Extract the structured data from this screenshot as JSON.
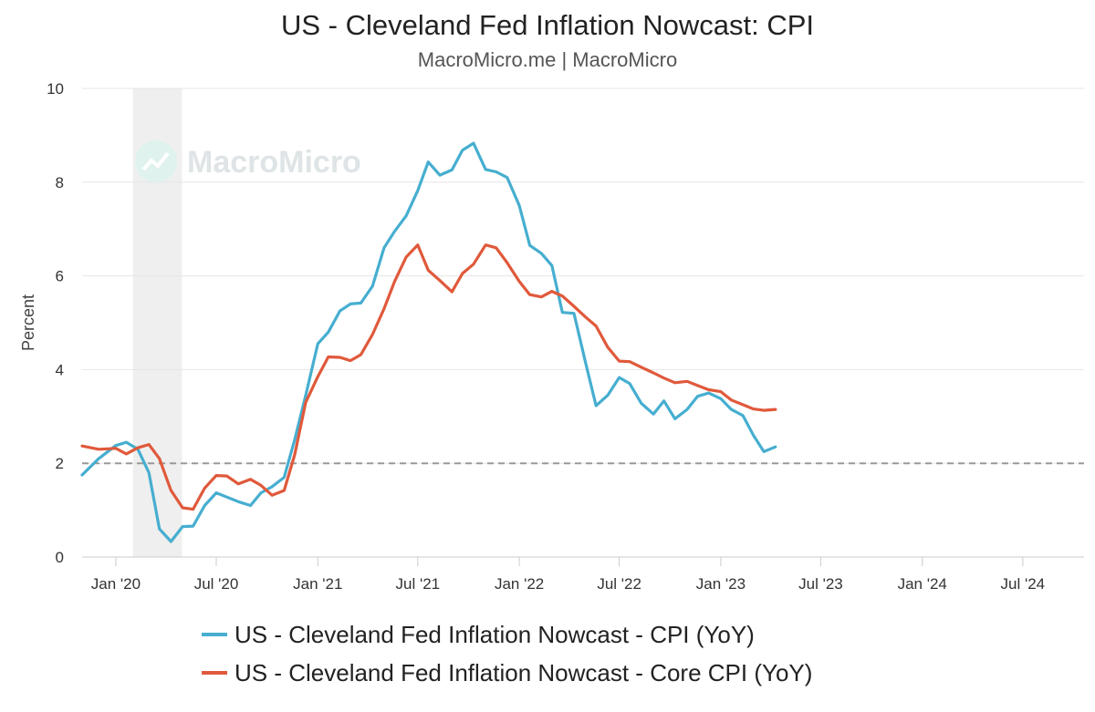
{
  "chart_data": {
    "type": "line",
    "title": "US - Cleveland Fed Inflation Nowcast: CPI",
    "subtitle": "MacroMicro.me | MacroMicro",
    "watermark": "MacroMicro",
    "ylabel": "Percent",
    "xlabel": "",
    "ylim": [
      0,
      10
    ],
    "yticks": [
      0,
      2,
      4,
      6,
      8,
      10
    ],
    "x_start": "2019-11",
    "x_end": "2024-10",
    "x_ticks": [
      {
        "date": "2020-01",
        "label": "Jan '20"
      },
      {
        "date": "2020-07",
        "label": "Jul '20"
      },
      {
        "date": "2021-01",
        "label": "Jan '21"
      },
      {
        "date": "2021-07",
        "label": "Jul '21"
      },
      {
        "date": "2022-01",
        "label": "Jan '22"
      },
      {
        "date": "2022-07",
        "label": "Jul '22"
      },
      {
        "date": "2023-01",
        "label": "Jan '23"
      },
      {
        "date": "2023-07",
        "label": "Jul '23"
      },
      {
        "date": "2024-01",
        "label": "Jan '24"
      },
      {
        "date": "2024-07",
        "label": "Jul '24"
      }
    ],
    "recession_shading": {
      "start": "2020-02",
      "end": "2020-04-30"
    },
    "reference_line": {
      "y": 2,
      "style": "dashed",
      "color": "#999999"
    },
    "grid": true,
    "legend_position": "bottom",
    "series": [
      {
        "name": "US - Cleveland Fed Inflation Nowcast - CPI (YoY)",
        "color": "#46aed0",
        "points": [
          [
            "2019-11-01",
            1.75
          ],
          [
            "2019-12-01",
            2.1
          ],
          [
            "2020-01-01",
            2.38
          ],
          [
            "2020-01-20",
            2.45
          ],
          [
            "2020-02-10",
            2.3
          ],
          [
            "2020-03-01",
            1.8
          ],
          [
            "2020-03-20",
            0.6
          ],
          [
            "2020-04-10",
            0.33
          ],
          [
            "2020-05-01",
            0.65
          ],
          [
            "2020-05-20",
            0.66
          ],
          [
            "2020-06-10",
            1.1
          ],
          [
            "2020-07-01",
            1.37
          ],
          [
            "2020-07-20",
            1.28
          ],
          [
            "2020-08-10",
            1.18
          ],
          [
            "2020-09-01",
            1.1
          ],
          [
            "2020-09-20",
            1.37
          ],
          [
            "2020-10-10",
            1.5
          ],
          [
            "2020-11-01",
            1.7
          ],
          [
            "2020-11-20",
            2.5
          ],
          [
            "2020-12-10",
            3.45
          ],
          [
            "2021-01-01",
            4.55
          ],
          [
            "2021-01-20",
            4.8
          ],
          [
            "2021-02-10",
            5.25
          ],
          [
            "2021-03-01",
            5.4
          ],
          [
            "2021-03-20",
            5.42
          ],
          [
            "2021-04-10",
            5.78
          ],
          [
            "2021-05-01",
            6.6
          ],
          [
            "2021-05-20",
            6.95
          ],
          [
            "2021-06-10",
            7.28
          ],
          [
            "2021-07-01",
            7.82
          ],
          [
            "2021-07-20",
            8.43
          ],
          [
            "2021-08-10",
            8.15
          ],
          [
            "2021-09-01",
            8.26
          ],
          [
            "2021-09-20",
            8.68
          ],
          [
            "2021-10-10",
            8.83
          ],
          [
            "2021-11-01",
            8.27
          ],
          [
            "2021-11-20",
            8.22
          ],
          [
            "2021-12-10",
            8.1
          ],
          [
            "2022-01-01",
            7.5
          ],
          [
            "2022-01-20",
            6.65
          ],
          [
            "2022-02-10",
            6.48
          ],
          [
            "2022-03-01",
            6.22
          ],
          [
            "2022-03-20",
            5.22
          ],
          [
            "2022-04-10",
            5.2
          ],
          [
            "2022-05-01",
            4.15
          ],
          [
            "2022-05-20",
            3.23
          ],
          [
            "2022-06-10",
            3.45
          ],
          [
            "2022-07-01",
            3.83
          ],
          [
            "2022-07-20",
            3.7
          ],
          [
            "2022-08-10",
            3.28
          ],
          [
            "2022-09-01",
            3.05
          ],
          [
            "2022-09-20",
            3.33
          ],
          [
            "2022-10-10",
            2.95
          ],
          [
            "2022-11-01",
            3.15
          ],
          [
            "2022-11-20",
            3.43
          ],
          [
            "2022-12-10",
            3.5
          ],
          [
            "2023-01-01",
            3.38
          ],
          [
            "2023-01-20",
            3.15
          ],
          [
            "2023-02-10",
            3.02
          ],
          [
            "2023-03-01",
            2.6
          ],
          [
            "2023-03-20",
            2.25
          ],
          [
            "2023-04-10",
            2.35
          ]
        ]
      },
      {
        "name": "US - Cleveland Fed Inflation Nowcast - Core CPI (YoY)",
        "color": "#e0593b",
        "points": [
          [
            "2019-11-01",
            2.37
          ],
          [
            "2019-12-01",
            2.3
          ],
          [
            "2020-01-01",
            2.32
          ],
          [
            "2020-01-20",
            2.2
          ],
          [
            "2020-02-10",
            2.33
          ],
          [
            "2020-03-01",
            2.4
          ],
          [
            "2020-03-20",
            2.1
          ],
          [
            "2020-04-10",
            1.42
          ],
          [
            "2020-05-01",
            1.05
          ],
          [
            "2020-05-20",
            1.02
          ],
          [
            "2020-06-10",
            1.47
          ],
          [
            "2020-07-01",
            1.74
          ],
          [
            "2020-07-20",
            1.73
          ],
          [
            "2020-08-10",
            1.56
          ],
          [
            "2020-09-01",
            1.66
          ],
          [
            "2020-09-20",
            1.53
          ],
          [
            "2020-10-10",
            1.32
          ],
          [
            "2020-11-01",
            1.42
          ],
          [
            "2020-11-20",
            2.18
          ],
          [
            "2020-12-10",
            3.3
          ],
          [
            "2021-01-01",
            3.85
          ],
          [
            "2021-01-20",
            4.27
          ],
          [
            "2021-02-10",
            4.26
          ],
          [
            "2021-03-01",
            4.19
          ],
          [
            "2021-03-20",
            4.32
          ],
          [
            "2021-04-10",
            4.75
          ],
          [
            "2021-05-01",
            5.3
          ],
          [
            "2021-05-20",
            5.88
          ],
          [
            "2021-06-10",
            6.4
          ],
          [
            "2021-07-01",
            6.66
          ],
          [
            "2021-07-20",
            6.12
          ],
          [
            "2021-08-10",
            5.9
          ],
          [
            "2021-09-01",
            5.66
          ],
          [
            "2021-09-20",
            6.05
          ],
          [
            "2021-10-10",
            6.25
          ],
          [
            "2021-11-01",
            6.66
          ],
          [
            "2021-11-20",
            6.6
          ],
          [
            "2021-12-10",
            6.28
          ],
          [
            "2022-01-01",
            5.88
          ],
          [
            "2022-01-20",
            5.6
          ],
          [
            "2022-02-10",
            5.55
          ],
          [
            "2022-03-01",
            5.67
          ],
          [
            "2022-03-20",
            5.57
          ],
          [
            "2022-04-10",
            5.35
          ],
          [
            "2022-05-01",
            5.12
          ],
          [
            "2022-05-20",
            4.93
          ],
          [
            "2022-06-10",
            4.48
          ],
          [
            "2022-07-01",
            4.18
          ],
          [
            "2022-07-20",
            4.17
          ],
          [
            "2022-08-10",
            4.05
          ],
          [
            "2022-09-01",
            3.93
          ],
          [
            "2022-09-20",
            3.82
          ],
          [
            "2022-10-10",
            3.72
          ],
          [
            "2022-11-01",
            3.75
          ],
          [
            "2022-11-20",
            3.66
          ],
          [
            "2022-12-10",
            3.57
          ],
          [
            "2023-01-01",
            3.53
          ],
          [
            "2023-01-20",
            3.35
          ],
          [
            "2023-02-10",
            3.25
          ],
          [
            "2023-03-01",
            3.16
          ],
          [
            "2023-03-20",
            3.13
          ],
          [
            "2023-04-10",
            3.15
          ]
        ]
      }
    ]
  }
}
